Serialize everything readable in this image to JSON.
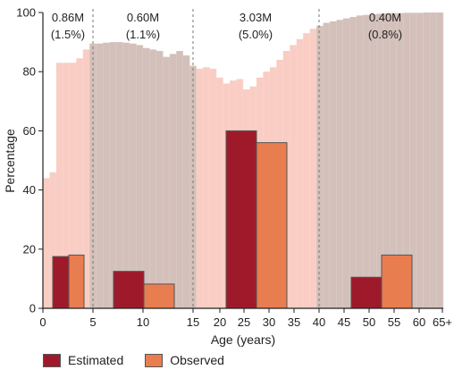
{
  "chart_data": {
    "type": "bar",
    "xlabel": "Age (years)",
    "ylabel": "Percentage",
    "ylim": [
      0,
      100
    ],
    "yticks": [
      0,
      20,
      40,
      60,
      80,
      100
    ],
    "xtick_labels": [
      "0",
      "5",
      "10",
      "15",
      "20",
      "25",
      "30",
      "35",
      "40",
      "45",
      "50",
      "55",
      "60",
      "65+"
    ],
    "age_groups": [
      {
        "label_value": "0.86M",
        "label_pct": "(1.5%)",
        "range": [
          "0",
          "5"
        ]
      },
      {
        "label_value": "0.60M",
        "label_pct": "(1.1%)",
        "range": [
          "5",
          "15"
        ]
      },
      {
        "label_value": "3.03M",
        "label_pct": "(5.0%)",
        "range": [
          "15",
          "40"
        ]
      },
      {
        "label_value": "0.40M",
        "label_pct": "(0.8%)",
        "range": [
          "40",
          "65+"
        ]
      }
    ],
    "series": [
      {
        "name": "Estimated",
        "color": "#9e1a2b",
        "values": [
          17.5,
          12.5,
          60,
          10.5
        ]
      },
      {
        "name": "Observed",
        "color": "#e87d50",
        "values": [
          18,
          8.2,
          56,
          18
        ]
      }
    ],
    "background_profile": {
      "description_colors": {
        "light": "#f9cdc3",
        "dark": "#d4c0ba"
      },
      "values": [
        44,
        46,
        83,
        83,
        83,
        84.5,
        87.5,
        89.5,
        89.5,
        89.8,
        90,
        90,
        89.8,
        89.5,
        89,
        88,
        87.5,
        87,
        85,
        86,
        87,
        85.5,
        82,
        81,
        81.5,
        81,
        78,
        76,
        77,
        77.5,
        74,
        75,
        78,
        80,
        81.5,
        84,
        87,
        89,
        91,
        93,
        94.5,
        95.5,
        96.5,
        97,
        97.5,
        98,
        98.5,
        99,
        99.2,
        99.4,
        99.6,
        99.7,
        99.8,
        99.8,
        99.9,
        99.9,
        99.9,
        100,
        100,
        100
      ]
    }
  }
}
